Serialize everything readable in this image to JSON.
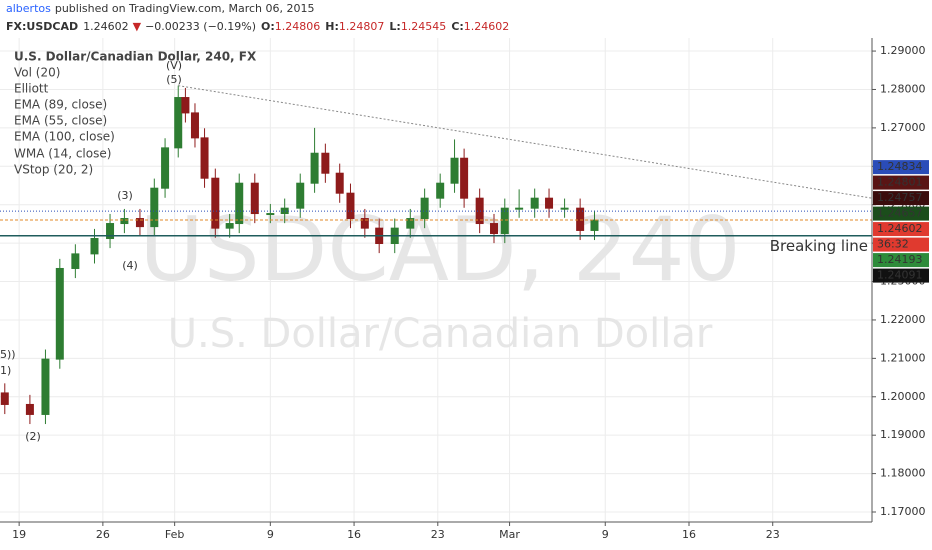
{
  "header": {
    "author": "albertos",
    "published": "published on TradingView.com, March 06, 2015"
  },
  "symbol_bar": {
    "symbol": "FX:USDCAD",
    "last": "1.24602",
    "arrow": "▼",
    "change": "−0.00233 (−0.19%)",
    "open_label": "O:",
    "open": "1.24806",
    "high_label": "H:",
    "high": "1.24807",
    "low_label": "L:",
    "low": "1.24545",
    "close_label": "C:",
    "close": "1.24602"
  },
  "chart_data": {
    "type": "candlestick",
    "title": "U.S. Dollar/Canadian Dollar, 240, FX",
    "indicators": [
      "Vol (20)",
      "Elliott",
      "EMA (89, close)",
      "EMA (55, close)",
      "EMA (100, close)",
      "WMA (14, close)",
      "VStop (20, 2)"
    ],
    "watermark": [
      "USDCAD, 240",
      "U.S. Dollar/Canadian Dollar"
    ],
    "wave_labels": [
      "(V)",
      "(5)",
      "(3)",
      "(4)",
      "(2)",
      "1)",
      "5))"
    ],
    "up_color": "#2e7d32",
    "down_color": "#8e1b1b",
    "x": [
      17.8,
      19.9,
      21.2,
      22.4,
      23.7,
      25.3,
      26.6,
      27.8,
      29.1,
      30.3,
      31.2,
      32.3,
      32.9,
      33.7,
      34.5,
      35.4,
      36.6,
      37.4,
      38.7,
      40.0,
      41.2,
      42.5,
      43.7,
      44.6,
      45.8,
      46.7,
      47.9,
      49.1,
      50.4,
      51.7,
      52.9,
      54.2,
      55.4,
      56.2,
      57.5,
      58.7,
      59.6,
      60.8,
      62.1,
      63.3,
      64.6,
      65.9,
      67.1
    ],
    "open": [
      1.201,
      1.198,
      1.1954,
      1.2098,
      1.2334,
      1.2372,
      1.2412,
      1.2451,
      1.2464,
      1.2443,
      1.2543,
      1.2648,
      1.2779,
      1.2739,
      1.2674,
      1.2569,
      1.2439,
      1.2451,
      1.2556,
      1.2477,
      1.2477,
      1.2491,
      1.2556,
      1.2634,
      1.2582,
      1.253,
      1.2464,
      1.2439,
      1.2399,
      1.2439,
      1.2464,
      1.2517,
      1.2556,
      1.2621,
      1.2517,
      1.2451,
      1.2425,
      1.2491,
      1.2491,
      1.2517,
      1.2491,
      1.2491,
      1.2433
    ],
    "high": [
      1.2035,
      1.2005,
      1.2123,
      1.2359,
      1.2397,
      1.2437,
      1.2476,
      1.2489,
      1.2489,
      1.2568,
      1.2673,
      1.281,
      1.2804,
      1.2764,
      1.2699,
      1.2594,
      1.2476,
      1.2581,
      1.2581,
      1.2502,
      1.2516,
      1.2581,
      1.27,
      1.2659,
      1.2607,
      1.2555,
      1.2489,
      1.2464,
      1.2464,
      1.2489,
      1.2542,
      1.2581,
      1.267,
      1.2646,
      1.2542,
      1.2476,
      1.2516,
      1.254,
      1.2542,
      1.2542,
      1.2516,
      1.2516,
      1.2485
    ],
    "low": [
      1.1955,
      1.1929,
      1.1929,
      1.2073,
      1.2309,
      1.2347,
      1.2387,
      1.2426,
      1.2418,
      1.2418,
      1.2518,
      1.2623,
      1.2714,
      1.2649,
      1.2544,
      1.2414,
      1.2414,
      1.2426,
      1.2452,
      1.2452,
      1.2452,
      1.2466,
      1.2531,
      1.2557,
      1.2505,
      1.2439,
      1.2414,
      1.2374,
      1.2374,
      1.2414,
      1.2439,
      1.2492,
      1.2531,
      1.2492,
      1.2426,
      1.24,
      1.24,
      1.2466,
      1.2466,
      1.2466,
      1.2466,
      1.2408,
      1.2408
    ],
    "close": [
      1.198,
      1.1954,
      1.2098,
      1.2334,
      1.2372,
      1.2412,
      1.2451,
      1.2464,
      1.2443,
      1.2543,
      1.2648,
      1.2779,
      1.2739,
      1.2674,
      1.2569,
      1.2439,
      1.2451,
      1.2556,
      1.2477,
      1.2477,
      1.2491,
      1.2556,
      1.2634,
      1.2582,
      1.253,
      1.2464,
      1.2439,
      1.2399,
      1.2439,
      1.2464,
      1.2517,
      1.2556,
      1.2621,
      1.2517,
      1.2451,
      1.2425,
      1.2491,
      1.2491,
      1.2517,
      1.2491,
      1.2491,
      1.2433,
      1.246
    ],
    "trendline": {
      "x": [
        32.3,
        90.3
      ],
      "y": [
        1.281,
        1.2517
      ]
    },
    "breaking_line": "Breaking line",
    "price_labels": [
      {
        "value": 1.24834,
        "color": "#2a4cb8"
      },
      {
        "value": 1.24801,
        "color": "#5a1414"
      },
      {
        "value": 1.24757,
        "color": "#3a0d0d"
      },
      {
        "value": 1.24657,
        "color": "#1b4d1b"
      },
      {
        "value": 1.24602,
        "color": "#e03a2f"
      },
      {
        "value": 1.24193,
        "color": "#2e8b3a"
      },
      {
        "value": 1.24091,
        "color": "#111111"
      }
    ],
    "countdown": "36:32",
    "xlim": [
      17.4,
      90.3
    ],
    "xticks": [
      19,
      26,
      {
        "value": 32,
        "label": "Feb"
      },
      {
        "value": 40,
        "label": "9"
      },
      {
        "value": 47,
        "label": "16"
      },
      {
        "value": 54,
        "label": "23"
      },
      {
        "value": 60,
        "label": "Mar"
      },
      {
        "value": 68,
        "label": "9"
      },
      {
        "value": 75,
        "label": "16"
      },
      {
        "value": 82,
        "label": "23"
      }
    ],
    "ylim": [
      1.1674,
      1.2934
    ],
    "yticks": [
      {
        "value": 1.17,
        "label": "1.17000"
      },
      {
        "value": 1.18,
        "label": "1.18000"
      },
      {
        "value": 1.19,
        "label": "1.19000"
      },
      {
        "value": 1.2,
        "label": "1.20000"
      },
      {
        "value": 1.21,
        "label": "1.21000"
      },
      {
        "value": 1.22,
        "label": "1.22000"
      },
      {
        "value": 1.23,
        "label": "1.23000"
      },
      {
        "value": 1.24,
        "label": "1.24000"
      },
      {
        "value": 1.25,
        "label": "1.25000"
      },
      {
        "value": 1.26,
        "label": "1.26000"
      },
      {
        "value": 1.27,
        "label": "1.27000"
      },
      {
        "value": 1.28,
        "label": "1.28000"
      },
      {
        "value": 1.29,
        "label": "1.29000"
      }
    ],
    "grid": true
  }
}
